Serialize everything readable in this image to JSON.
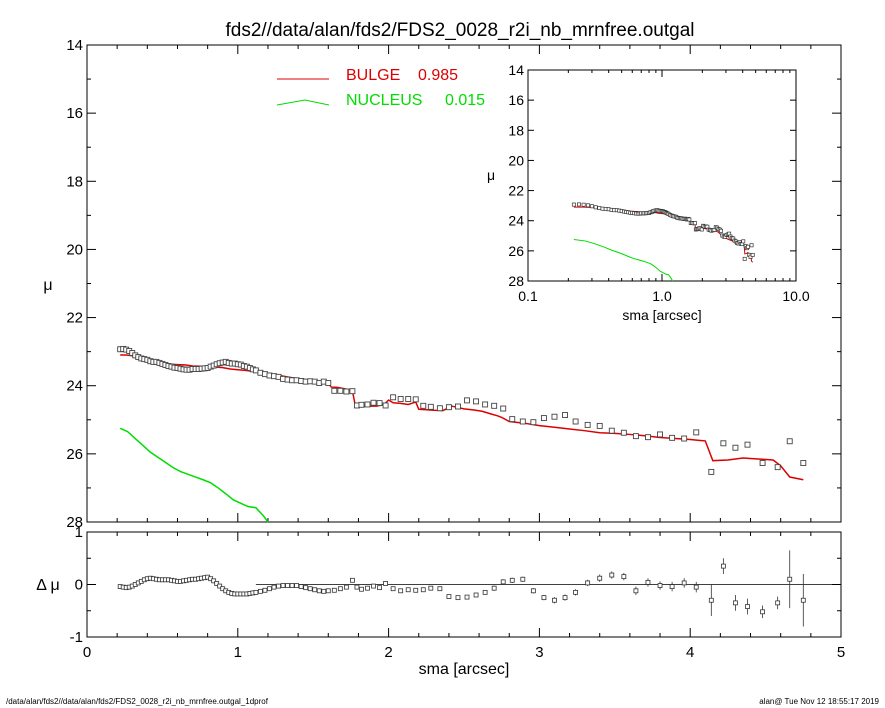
{
  "title": "fds2//data/alan/fds2/FDS2_0028_r2i_nb_mrnfree.outgal",
  "footer_left": "/data/alan/fds2//data/alan/fds2/FDS2_0028_r2i_nb_mrnfree.outgal_1dprof",
  "footer_right": "alan@  Tue Nov 12 18:55:17 2019",
  "colors": {
    "bulge": "#dd0000",
    "nucleus": "#00dd00",
    "data": "#000000",
    "axis": "#000000"
  },
  "chart_data": [
    {
      "type": "scatter",
      "panel": "main profile",
      "xlabel": "",
      "ylabel": "μ",
      "xlim": [
        0,
        5
      ],
      "ylim": [
        28,
        14
      ],
      "y_ticks": [
        "14",
        "16",
        "18",
        "20",
        "22",
        "24",
        "26",
        "28"
      ],
      "legend": [
        {
          "name": "BULGE",
          "value": "0.985",
          "color": "#dd0000"
        },
        {
          "name": "NUCLEUS",
          "value": "0.015",
          "color": "#00dd00"
        }
      ],
      "legend_placement": "top-center",
      "series": [
        {
          "name": "data",
          "marker": "square",
          "x": [
            0.22,
            0.24,
            0.26,
            0.28,
            0.3,
            0.32,
            0.34,
            0.36,
            0.38,
            0.4,
            0.42,
            0.44,
            0.46,
            0.48,
            0.5,
            0.52,
            0.54,
            0.56,
            0.58,
            0.6,
            0.62,
            0.64,
            0.66,
            0.68,
            0.7,
            0.72,
            0.74,
            0.76,
            0.78,
            0.8,
            0.82,
            0.84,
            0.86,
            0.88,
            0.9,
            0.92,
            0.94,
            0.96,
            0.98,
            1.0,
            1.02,
            1.04,
            1.06,
            1.08,
            1.1,
            1.12,
            1.15,
            1.18,
            1.21,
            1.24,
            1.27,
            1.3,
            1.33,
            1.36,
            1.39,
            1.42,
            1.45,
            1.48,
            1.51,
            1.54,
            1.57,
            1.6,
            1.64,
            1.68,
            1.72,
            1.76,
            1.79,
            1.82,
            1.86,
            1.9,
            1.94,
            1.98,
            2.03,
            2.08,
            2.13,
            2.18,
            2.23,
            2.28,
            2.34,
            2.4,
            2.46,
            2.52,
            2.58,
            2.64,
            2.7,
            2.76,
            2.82,
            2.89,
            2.96,
            3.03,
            3.1,
            3.17,
            3.24,
            3.32,
            3.4,
            3.48,
            3.56,
            3.64,
            3.72,
            3.8,
            3.88,
            3.96,
            4.04,
            4.14,
            4.22,
            4.3,
            4.38,
            4.48,
            4.58,
            4.66,
            4.75
          ],
          "y": [
            22.93,
            22.92,
            22.94,
            22.98,
            23.04,
            23.11,
            23.16,
            23.2,
            23.22,
            23.24,
            23.28,
            23.3,
            23.3,
            23.33,
            23.36,
            23.39,
            23.42,
            23.44,
            23.47,
            23.48,
            23.5,
            23.52,
            23.53,
            23.53,
            23.51,
            23.51,
            23.51,
            23.5,
            23.49,
            23.48,
            23.44,
            23.41,
            23.37,
            23.34,
            23.32,
            23.3,
            23.33,
            23.35,
            23.35,
            23.37,
            23.38,
            23.42,
            23.44,
            23.48,
            23.52,
            23.55,
            23.62,
            23.66,
            23.7,
            23.72,
            23.74,
            23.8,
            23.82,
            23.84,
            23.84,
            23.86,
            23.88,
            23.87,
            23.88,
            23.92,
            23.88,
            23.92,
            24.15,
            24.15,
            24.17,
            24.16,
            24.58,
            24.56,
            24.55,
            24.5,
            24.51,
            24.58,
            24.34,
            24.39,
            24.39,
            24.4,
            24.59,
            24.62,
            24.66,
            24.63,
            24.61,
            24.43,
            24.46,
            24.55,
            24.59,
            24.67,
            24.98,
            25.05,
            25.07,
            24.95,
            24.91,
            24.86,
            25.05,
            25.15,
            25.18,
            25.32,
            25.38,
            25.48,
            25.51,
            25.43,
            25.53,
            25.55,
            25.37,
            26.53,
            25.69,
            25.82,
            25.73,
            26.27,
            26.39,
            25.63,
            26.27
          ]
        },
        {
          "name": "BULGE",
          "type": "line",
          "x": [
            0.22,
            0.26,
            0.3,
            0.35,
            0.4,
            0.45,
            0.5,
            0.55,
            0.6,
            0.65,
            0.7,
            0.75,
            0.8,
            0.85,
            0.9,
            0.95,
            1.0,
            1.05,
            1.1,
            1.15,
            1.2,
            1.25,
            1.3,
            1.35,
            1.4,
            1.45,
            1.5,
            1.55,
            1.6,
            1.62,
            1.66,
            1.72,
            1.76,
            1.78,
            1.82,
            1.86,
            1.92,
            1.97,
            2.0,
            2.03,
            2.08,
            2.13,
            2.18,
            2.2,
            2.24,
            2.3,
            2.36,
            2.42,
            2.45,
            2.5,
            2.56,
            2.62,
            2.68,
            2.72,
            2.75,
            2.8,
            2.9,
            3.0,
            3.1,
            3.2,
            3.3,
            3.4,
            3.5,
            3.6,
            3.7,
            3.8,
            3.9,
            4.0,
            4.05,
            4.1,
            4.15,
            4.25,
            4.35,
            4.45,
            4.55,
            4.6,
            4.66,
            4.75
          ],
          "y": [
            23.1,
            23.1,
            23.12,
            23.17,
            23.26,
            23.32,
            23.35,
            23.37,
            23.38,
            23.39,
            23.42,
            23.43,
            23.45,
            23.45,
            23.47,
            23.51,
            23.53,
            23.55,
            23.58,
            23.6,
            23.64,
            23.68,
            23.72,
            23.76,
            23.79,
            23.82,
            23.85,
            23.89,
            23.94,
            24.04,
            24.05,
            24.1,
            24.15,
            24.6,
            24.6,
            24.6,
            24.6,
            24.55,
            24.42,
            24.5,
            24.52,
            24.55,
            24.48,
            24.69,
            24.7,
            24.72,
            24.73,
            24.6,
            24.63,
            24.68,
            24.71,
            24.75,
            24.83,
            24.88,
            24.93,
            25.05,
            25.1,
            25.17,
            25.22,
            25.27,
            25.32,
            25.38,
            25.4,
            25.43,
            25.47,
            25.52,
            25.55,
            25.58,
            25.6,
            25.62,
            26.2,
            26.18,
            26.12,
            26.15,
            26.18,
            26.35,
            26.68,
            26.76
          ]
        },
        {
          "name": "NUCLEUS",
          "type": "line",
          "x": [
            0.22,
            0.27,
            0.32,
            0.37,
            0.42,
            0.47,
            0.52,
            0.57,
            0.62,
            0.67,
            0.72,
            0.77,
            0.82,
            0.87,
            0.92,
            0.97,
            1.02,
            1.07,
            1.12,
            1.17,
            1.2
          ],
          "y": [
            25.25,
            25.35,
            25.55,
            25.75,
            25.95,
            26.1,
            26.25,
            26.4,
            26.52,
            26.6,
            26.68,
            26.76,
            26.85,
            27.0,
            27.17,
            27.35,
            27.45,
            27.55,
            27.58,
            27.82,
            28.0
          ]
        }
      ]
    },
    {
      "type": "scatter",
      "panel": "inset log",
      "xlabel": "sma [arcsec]",
      "ylabel": "μ",
      "x_scale": "log",
      "xlim": [
        0.1,
        10.0
      ],
      "ylim": [
        28,
        14
      ],
      "x_ticks": [
        "0.1",
        "1.0",
        "10.0"
      ],
      "y_ticks": [
        "14",
        "16",
        "18",
        "20",
        "22",
        "24",
        "26",
        "28"
      ],
      "series": [
        {
          "name": "data",
          "marker": "square"
        },
        {
          "name": "BULGE",
          "type": "line"
        },
        {
          "name": "NUCLEUS",
          "type": "line"
        }
      ]
    },
    {
      "type": "scatter",
      "panel": "residuals",
      "xlabel": "sma [arcsec]",
      "ylabel": "Δ μ",
      "xlim": [
        0,
        5
      ],
      "ylim": [
        -1,
        1
      ],
      "x_ticks": [
        "0",
        "1",
        "2",
        "3",
        "4",
        "5"
      ],
      "y_ticks": [
        "1",
        "0",
        "-1"
      ],
      "reference_line": 0,
      "series": [
        {
          "name": "residual",
          "marker": "square",
          "x": [
            0.22,
            0.24,
            0.26,
            0.28,
            0.3,
            0.32,
            0.34,
            0.36,
            0.38,
            0.4,
            0.42,
            0.44,
            0.46,
            0.48,
            0.5,
            0.52,
            0.54,
            0.56,
            0.58,
            0.6,
            0.62,
            0.64,
            0.66,
            0.68,
            0.7,
            0.72,
            0.74,
            0.76,
            0.78,
            0.8,
            0.82,
            0.84,
            0.86,
            0.88,
            0.9,
            0.92,
            0.94,
            0.96,
            0.98,
            1.0,
            1.02,
            1.04,
            1.06,
            1.08,
            1.1,
            1.12,
            1.15,
            1.18,
            1.21,
            1.24,
            1.27,
            1.3,
            1.33,
            1.36,
            1.39,
            1.42,
            1.45,
            1.48,
            1.51,
            1.54,
            1.57,
            1.6,
            1.64,
            1.68,
            1.72,
            1.76,
            1.79,
            1.82,
            1.86,
            1.9,
            1.94,
            1.98,
            2.03,
            2.08,
            2.13,
            2.18,
            2.23,
            2.28,
            2.34,
            2.4,
            2.46,
            2.52,
            2.58,
            2.64,
            2.7,
            2.76,
            2.82,
            2.89,
            2.96,
            3.03,
            3.1,
            3.17,
            3.24,
            3.32,
            3.4,
            3.48,
            3.56,
            3.64,
            3.72,
            3.8,
            3.88,
            3.96,
            4.04,
            4.14,
            4.22,
            4.3,
            4.38,
            4.48,
            4.58,
            4.66,
            4.75
          ],
          "y": [
            -0.04,
            -0.05,
            -0.06,
            -0.05,
            -0.03,
            0.0,
            0.03,
            0.06,
            0.09,
            0.11,
            0.12,
            0.11,
            0.1,
            0.09,
            0.09,
            0.09,
            0.09,
            0.08,
            0.07,
            0.06,
            0.06,
            0.07,
            0.08,
            0.09,
            0.1,
            0.1,
            0.11,
            0.12,
            0.13,
            0.14,
            0.11,
            0.07,
            0.02,
            -0.03,
            -0.08,
            -0.12,
            -0.15,
            -0.17,
            -0.18,
            -0.18,
            -0.18,
            -0.18,
            -0.18,
            -0.17,
            -0.16,
            -0.15,
            -0.13,
            -0.11,
            -0.08,
            -0.05,
            -0.03,
            -0.02,
            -0.02,
            -0.02,
            -0.02,
            -0.04,
            -0.06,
            -0.08,
            -0.1,
            -0.12,
            -0.13,
            -0.12,
            -0.11,
            -0.08,
            -0.05,
            0.08,
            -0.05,
            -0.09,
            -0.07,
            -0.03,
            -0.06,
            0.02,
            -0.08,
            -0.12,
            -0.1,
            -0.11,
            -0.1,
            -0.07,
            -0.08,
            -0.23,
            -0.25,
            -0.24,
            -0.2,
            -0.15,
            -0.07,
            0.05,
            0.08,
            0.1,
            -0.12,
            -0.25,
            -0.3,
            -0.25,
            -0.15,
            0.03,
            0.12,
            0.18,
            0.15,
            -0.12,
            0.04,
            -0.02,
            -0.04,
            0.03,
            -0.05,
            -0.3,
            0.35,
            -0.35,
            -0.42,
            -0.52,
            -0.35,
            0.1,
            -0.3
          ],
          "err": [
            0,
            0,
            0,
            0,
            0,
            0,
            0,
            0,
            0,
            0,
            0,
            0,
            0,
            0,
            0,
            0,
            0,
            0,
            0,
            0,
            0,
            0,
            0,
            0,
            0,
            0,
            0,
            0,
            0,
            0,
            0,
            0,
            0,
            0,
            0,
            0,
            0,
            0,
            0,
            0,
            0,
            0,
            0,
            0,
            0,
            0,
            0,
            0,
            0,
            0,
            0,
            0,
            0,
            0,
            0,
            0,
            0,
            0,
            0,
            0,
            0,
            0,
            0,
            0,
            0,
            0.03,
            0.03,
            0.03,
            0.03,
            0.03,
            0.03,
            0.03,
            0.03,
            0.03,
            0.03,
            0.03,
            0.03,
            0.03,
            0.04,
            0.04,
            0.04,
            0.04,
            0.04,
            0.04,
            0.05,
            0.05,
            0.05,
            0.05,
            0.05,
            0.05,
            0.06,
            0.06,
            0.06,
            0.06,
            0.07,
            0.07,
            0.07,
            0.08,
            0.08,
            0.08,
            0.09,
            0.09,
            0.1,
            0.3,
            0.15,
            0.15,
            0.15,
            0.12,
            0.12,
            0.55,
            0.5
          ]
        }
      ]
    }
  ]
}
